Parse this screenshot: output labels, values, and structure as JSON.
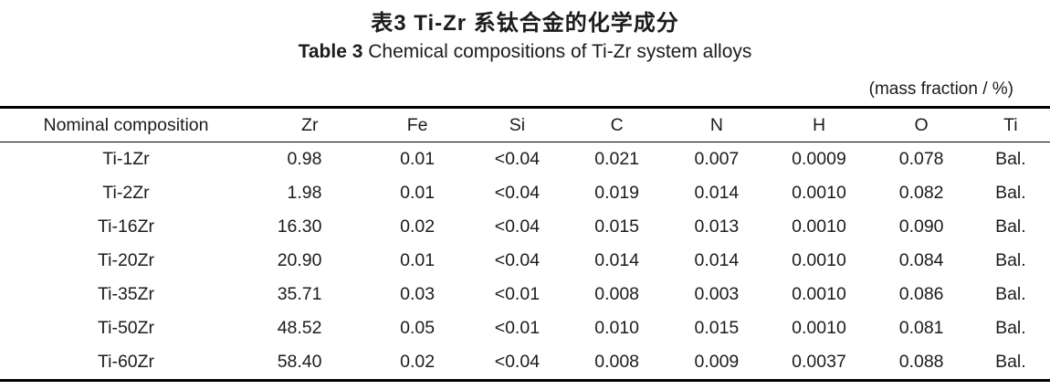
{
  "page": {
    "title_zh": "表3  Ti-Zr 系钛合金的化学成分",
    "title_en_prefix": "Table 3",
    "title_en_rest": " Chemical compositions of Ti-Zr system alloys",
    "unit_note": "(mass fraction / %)"
  },
  "table": {
    "columns": [
      "Nominal composition",
      "Zr",
      "Fe",
      "Si",
      "C",
      "N",
      "H",
      "O",
      "Ti"
    ],
    "rows": [
      [
        "Ti-1Zr",
        "0.98",
        "0.01",
        "<0.04",
        "0.021",
        "0.007",
        "0.0009",
        "0.078",
        "Bal."
      ],
      [
        "Ti-2Zr",
        "1.98",
        "0.01",
        "<0.04",
        "0.019",
        "0.014",
        "0.0010",
        "0.082",
        "Bal."
      ],
      [
        "Ti-16Zr",
        "16.30",
        "0.02",
        "<0.04",
        "0.015",
        "0.013",
        "0.0010",
        "0.090",
        "Bal."
      ],
      [
        "Ti-20Zr",
        "20.90",
        "0.01",
        "<0.04",
        "0.014",
        "0.014",
        "0.0010",
        "0.084",
        "Bal."
      ],
      [
        "Ti-35Zr",
        "35.71",
        "0.03",
        "<0.01",
        "0.008",
        "0.003",
        "0.0010",
        "0.086",
        "Bal."
      ],
      [
        "Ti-50Zr",
        "48.52",
        "0.05",
        "<0.01",
        "0.010",
        "0.015",
        "0.0010",
        "0.081",
        "Bal."
      ],
      [
        "Ti-60Zr",
        "58.40",
        "0.02",
        "<0.04",
        "0.008",
        "0.009",
        "0.0037",
        "0.088",
        "Bal."
      ]
    ]
  }
}
